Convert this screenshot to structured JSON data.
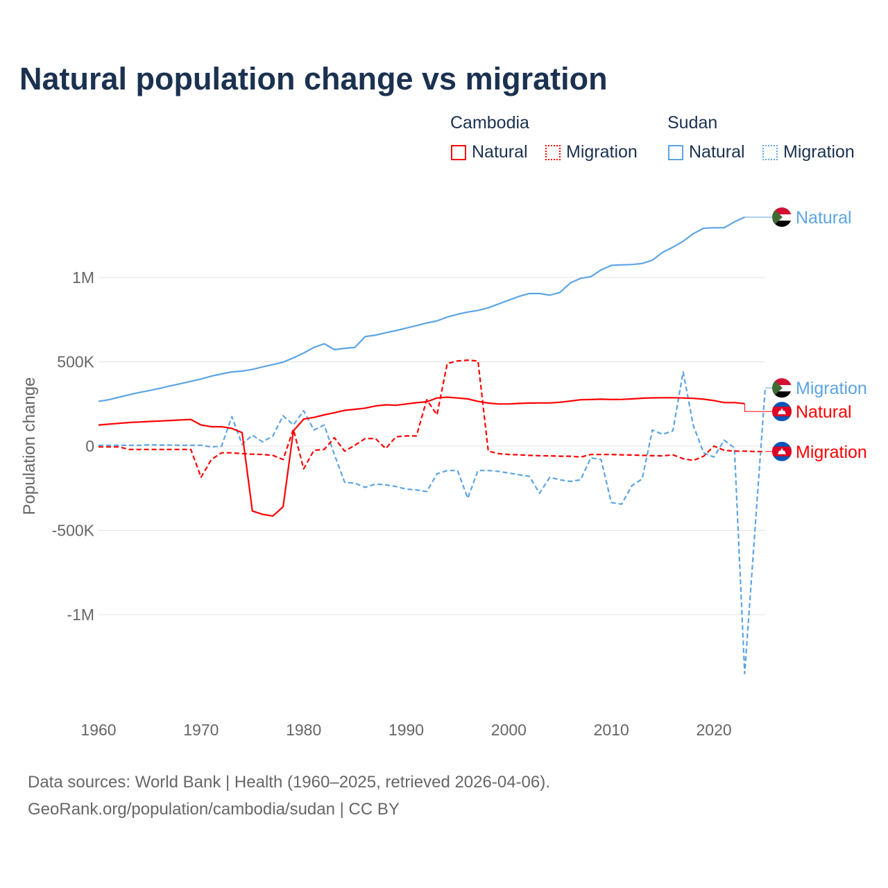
{
  "title": "Natural population change vs migration",
  "legend": {
    "groups": [
      {
        "name": "Cambodia",
        "items": [
          {
            "label": "Natural",
            "style": "solid",
            "color": "#ff0000"
          },
          {
            "label": "Migration",
            "style": "dotted",
            "color": "#ff0000"
          }
        ]
      },
      {
        "name": "Sudan",
        "items": [
          {
            "label": "Natural",
            "style": "solid",
            "color": "#5ba4e5"
          },
          {
            "label": "Migration",
            "style": "dotted",
            "color": "#5ba4e5"
          }
        ]
      }
    ]
  },
  "footer": {
    "line1": "Data sources: World Bank | Health (1960–2025, retrieved 2026-04-06).",
    "line2": "GeoRank.org/population/cambodia/sudan | CC BY"
  },
  "chart_data": {
    "type": "line",
    "title": "Natural population change vs migration",
    "xlabel": "",
    "ylabel": "Population change",
    "xlim": [
      1960,
      2025
    ],
    "ylim": [
      -1400000,
      1500000
    ],
    "x_ticks": [
      {
        "v": 1960,
        "label": "1960"
      },
      {
        "v": 1970,
        "label": "1970"
      },
      {
        "v": 1980,
        "label": "1980"
      },
      {
        "v": 1990,
        "label": "1990"
      },
      {
        "v": 2000,
        "label": "2000"
      },
      {
        "v": 2010,
        "label": "2010"
      },
      {
        "v": 2020,
        "label": "2020"
      }
    ],
    "y_ticks": [
      {
        "v": 1000000,
        "label": "1M"
      },
      {
        "v": 500000,
        "label": "500K"
      },
      {
        "v": 0,
        "label": "0"
      },
      {
        "v": -500000,
        "label": "-500K"
      },
      {
        "v": -1000000,
        "label": "-1M"
      }
    ],
    "grid": true,
    "legend_position": "top-right",
    "series": [
      {
        "name": "Sudan Natural",
        "end_label": "Natural",
        "country": "Sudan",
        "color": "#5ba4e5",
        "dash": false,
        "start": 1960,
        "unit": 1000,
        "values": [
          265,
          275,
          290,
          305,
          318,
          330,
          343,
          357,
          370,
          384,
          398,
          415,
          428,
          440,
          445,
          455,
          470,
          483,
          498,
          523,
          552,
          585,
          607,
          572,
          580,
          585,
          650,
          658,
          672,
          685,
          700,
          715,
          730,
          743,
          765,
          782,
          795,
          805,
          820,
          843,
          866,
          888,
          905,
          905,
          895,
          912,
          968,
          995,
          1005,
          1045,
          1072,
          1075,
          1077,
          1083,
          1103,
          1150,
          1180,
          1215,
          1260,
          1292,
          1295,
          1295,
          1330,
          1358
        ]
      },
      {
        "name": "Sudan Migration",
        "end_label": "Migration",
        "country": "Sudan",
        "color": "#5ba4e5",
        "dash": true,
        "start": 1960,
        "unit": 1000,
        "values": [
          5,
          5,
          5,
          5,
          5,
          8,
          6,
          6,
          5,
          5,
          5,
          -5,
          0,
          175,
          10,
          65,
          25,
          60,
          180,
          125,
          210,
          95,
          125,
          -50,
          -215,
          -220,
          -245,
          -225,
          -230,
          -240,
          -255,
          -260,
          -270,
          -165,
          -145,
          -145,
          -310,
          -145,
          -145,
          -150,
          -160,
          -170,
          -180,
          -280,
          -185,
          -200,
          -210,
          -200,
          -70,
          -80,
          -335,
          -345,
          -235,
          -195,
          95,
          70,
          90,
          440,
          120,
          -40,
          -65,
          35,
          -10,
          -1350,
          -500,
          345
        ]
      },
      {
        "name": "Cambodia Natural",
        "end_label": "Natural",
        "country": "Cambodia",
        "color": "#ff0000",
        "dash": false,
        "start": 1960,
        "unit": 1000,
        "values": [
          125,
          130,
          135,
          140,
          143,
          146,
          149,
          152,
          155,
          158,
          125,
          115,
          115,
          105,
          80,
          -385,
          -405,
          -415,
          -360,
          90,
          160,
          170,
          185,
          198,
          212,
          218,
          225,
          238,
          245,
          242,
          250,
          257,
          263,
          285,
          290,
          285,
          280,
          265,
          255,
          250,
          250,
          253,
          255,
          256,
          256,
          260,
          267,
          275,
          276,
          278,
          276,
          277,
          280,
          284,
          286,
          287,
          287,
          285,
          283,
          278,
          270,
          258,
          258,
          252
        ]
      },
      {
        "name": "Cambodia Migration",
        "end_label": "Migration",
        "country": "Cambodia",
        "color": "#ff0000",
        "dash": true,
        "start": 1960,
        "unit": 1000,
        "values": [
          -5,
          -5,
          -5,
          -20,
          -20,
          -20,
          -20,
          -20,
          -20,
          -20,
          -185,
          -80,
          -40,
          -40,
          -45,
          -48,
          -50,
          -55,
          -80,
          100,
          -135,
          -25,
          -20,
          50,
          -30,
          5,
          45,
          45,
          -15,
          55,
          60,
          60,
          275,
          185,
          490,
          505,
          510,
          505,
          -30,
          -45,
          -50,
          -52,
          -55,
          -57,
          -58,
          -60,
          -60,
          -65,
          -50,
          -50,
          -50,
          -52,
          -53,
          -55,
          -57,
          -58,
          -52,
          -75,
          -85,
          -60,
          0,
          -25,
          -30,
          -30,
          -32,
          -32
        ]
      }
    ]
  }
}
